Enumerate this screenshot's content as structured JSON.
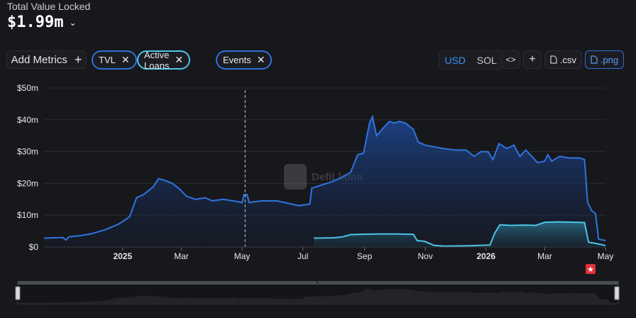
{
  "header": {
    "label": "Total Value Locked",
    "value": "$1.99m",
    "chevron_icon": "chevron-down-icon"
  },
  "toolbar": {
    "add_metrics_label": "Add Metrics",
    "plus_icon": "plus-icon",
    "pills": [
      {
        "label": "TVL",
        "color": "#2e6fd8"
      },
      {
        "label": "Active Loans",
        "color": "#4cc4e6"
      },
      {
        "label": "Events",
        "color": "#2e6fd8"
      }
    ],
    "currency": {
      "options": [
        "USD",
        "SOL"
      ],
      "selected": "USD"
    },
    "embed_icon": "code-icon",
    "add_icon": "plus-icon",
    "csv_label": ".csv",
    "png_label": ".png",
    "file_icon": "file-icon"
  },
  "watermark": "DefiLlama",
  "chart_data": {
    "type": "area",
    "y_ticks": [
      "$0",
      "$10m",
      "$20m",
      "$30m",
      "$40m",
      "$50m"
    ],
    "ylim": [
      0,
      50000000
    ],
    "xlim": [
      "2024-10-14",
      "2026-05-01"
    ],
    "x_ticks": [
      {
        "label": "2025",
        "date": "2025-01-01",
        "bold": true
      },
      {
        "label": "Mar",
        "date": "2025-03-01"
      },
      {
        "label": "May",
        "date": "2025-05-01"
      },
      {
        "label": "Jul",
        "date": "2025-07-01"
      },
      {
        "label": "Sep",
        "date": "2025-09-01"
      },
      {
        "label": "Nov",
        "date": "2025-11-01"
      },
      {
        "label": "2026",
        "date": "2026-01-01",
        "bold": true
      },
      {
        "label": "Mar",
        "date": "2026-03-01"
      },
      {
        "label": "May",
        "date": "2026-05-01"
      }
    ],
    "colors": {
      "tvl": "#2f74e0",
      "active_loans": "#4cc4e6",
      "event": "#e0323a",
      "grid": "#2a2c31",
      "axis_text": "#e6e7ea"
    },
    "series": [
      {
        "name": "TVL",
        "points": [
          [
            "2024-10-14",
            2.8
          ],
          [
            "2024-10-25",
            2.9
          ],
          [
            "2024-11-02",
            3.0
          ],
          [
            "2024-11-05",
            2.2
          ],
          [
            "2024-11-08",
            3.2
          ],
          [
            "2024-11-20",
            3.6
          ],
          [
            "2024-12-01",
            4.2
          ],
          [
            "2024-12-15",
            5.5
          ],
          [
            "2024-12-28",
            7.2
          ],
          [
            "2025-01-08",
            9.5
          ],
          [
            "2025-01-15",
            15.5
          ],
          [
            "2025-01-22",
            16.5
          ],
          [
            "2025-02-01",
            19.0
          ],
          [
            "2025-02-06",
            21.5
          ],
          [
            "2025-02-12",
            21.0
          ],
          [
            "2025-02-20",
            20.0
          ],
          [
            "2025-02-28",
            18.0
          ],
          [
            "2025-03-06",
            16.0
          ],
          [
            "2025-03-15",
            15.0
          ],
          [
            "2025-03-25",
            15.5
          ],
          [
            "2025-04-01",
            14.5
          ],
          [
            "2025-04-12",
            15.0
          ],
          [
            "2025-04-22",
            14.5
          ],
          [
            "2025-05-01",
            14.0
          ],
          [
            "2025-05-03",
            16.5
          ],
          [
            "2025-05-06",
            16.5
          ],
          [
            "2025-05-08",
            14.0
          ],
          [
            "2025-05-20",
            14.5
          ],
          [
            "2025-06-05",
            14.5
          ],
          [
            "2025-06-20",
            13.5
          ],
          [
            "2025-06-27",
            13.0
          ],
          [
            "2025-07-08",
            13.5
          ],
          [
            "2025-07-10",
            18.5
          ],
          [
            "2025-07-20",
            19.5
          ],
          [
            "2025-07-30",
            20.5
          ],
          [
            "2025-08-10",
            22.0
          ],
          [
            "2025-08-18",
            23.5
          ],
          [
            "2025-08-25",
            29.0
          ],
          [
            "2025-08-31",
            29.5
          ],
          [
            "2025-09-06",
            39.0
          ],
          [
            "2025-09-09",
            41.0
          ],
          [
            "2025-09-13",
            35.0
          ],
          [
            "2025-09-20",
            37.5
          ],
          [
            "2025-09-26",
            39.5
          ],
          [
            "2025-10-01",
            39.0
          ],
          [
            "2025-10-06",
            39.5
          ],
          [
            "2025-10-12",
            39.0
          ],
          [
            "2025-10-20",
            37.0
          ],
          [
            "2025-10-25",
            33.0
          ],
          [
            "2025-11-01",
            32.0
          ],
          [
            "2025-11-10",
            31.5
          ],
          [
            "2025-11-18",
            31.0
          ],
          [
            "2025-12-01",
            30.5
          ],
          [
            "2025-12-12",
            30.5
          ],
          [
            "2025-12-20",
            28.5
          ],
          [
            "2025-12-27",
            30.0
          ],
          [
            "2026-01-03",
            30.0
          ],
          [
            "2026-01-08",
            27.5
          ],
          [
            "2026-01-14",
            32.5
          ],
          [
            "2026-01-22",
            31.0
          ],
          [
            "2026-01-29",
            32.0
          ],
          [
            "2026-02-04",
            28.5
          ],
          [
            "2026-02-10",
            30.5
          ],
          [
            "2026-02-16",
            28.5
          ],
          [
            "2026-02-22",
            26.5
          ],
          [
            "2026-03-01",
            27.0
          ],
          [
            "2026-03-04",
            29.0
          ],
          [
            "2026-03-08",
            27.0
          ],
          [
            "2026-03-16",
            28.5
          ],
          [
            "2026-03-26",
            28.0
          ],
          [
            "2026-04-05",
            28.0
          ],
          [
            "2026-04-10",
            27.5
          ],
          [
            "2026-04-13",
            14.0
          ],
          [
            "2026-04-17",
            11.5
          ],
          [
            "2026-04-21",
            10.5
          ],
          [
            "2026-04-24",
            2.5
          ],
          [
            "2026-05-01",
            2.0
          ]
        ]
      },
      {
        "name": "Active Loans",
        "points": [
          [
            "2025-07-12",
            2.8
          ],
          [
            "2025-08-01",
            2.9
          ],
          [
            "2025-08-10",
            3.2
          ],
          [
            "2025-08-18",
            3.9
          ],
          [
            "2025-09-15",
            4.1
          ],
          [
            "2025-10-01",
            4.1
          ],
          [
            "2025-10-20",
            4.0
          ],
          [
            "2025-10-24",
            2.0
          ],
          [
            "2025-10-31",
            1.8
          ],
          [
            "2025-11-10",
            0.5
          ],
          [
            "2025-11-20",
            0.3
          ],
          [
            "2025-12-15",
            0.4
          ],
          [
            "2026-01-05",
            0.6
          ],
          [
            "2026-01-10",
            4.5
          ],
          [
            "2026-01-15",
            7.0
          ],
          [
            "2026-01-25",
            6.8
          ],
          [
            "2026-02-10",
            6.9
          ],
          [
            "2026-02-20",
            6.8
          ],
          [
            "2026-03-01",
            7.8
          ],
          [
            "2026-03-15",
            7.9
          ],
          [
            "2026-04-01",
            7.8
          ],
          [
            "2026-04-10",
            7.7
          ],
          [
            "2026-04-14",
            1.5
          ],
          [
            "2026-04-20",
            1.2
          ],
          [
            "2026-05-01",
            0.5
          ]
        ]
      }
    ],
    "event_markers": [
      {
        "date": "2025-05-04",
        "style": "dashed"
      }
    ],
    "event_icons": [
      {
        "date": "2026-04-16",
        "icon": "star-icon"
      }
    ]
  }
}
